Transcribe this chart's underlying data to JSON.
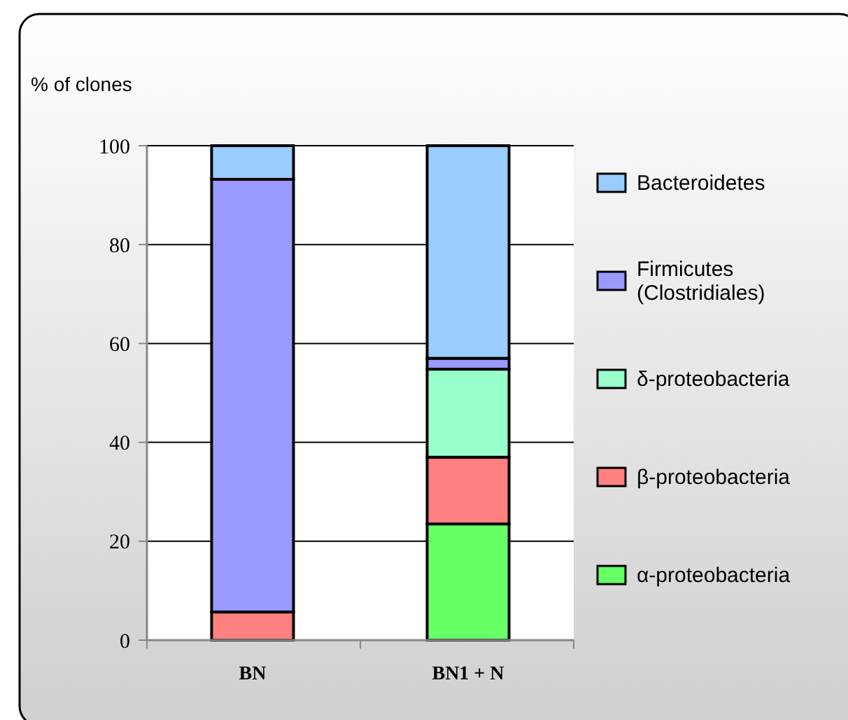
{
  "chart_data": {
    "type": "bar",
    "stacked": true,
    "ylabel": "% of clones",
    "categories": [
      "BN",
      "BN1 + N"
    ],
    "series": [
      {
        "name": "α-proteobacteria",
        "color": "#66ff66",
        "values": [
          0,
          23.5
        ]
      },
      {
        "name": "β-proteobacteria",
        "color": "#ff8080",
        "values": [
          5.7,
          13.5
        ]
      },
      {
        "name": "δ-proteobacteria",
        "color": "#99ffcc",
        "values": [
          0,
          17.8
        ]
      },
      {
        "name": "Firmicutes (Clostridiales)",
        "color": "#9999ff",
        "values": [
          87.5,
          2.2
        ]
      },
      {
        "name": "Bacteroidetes",
        "color": "#99ccff",
        "values": [
          6.8,
          43
        ]
      }
    ],
    "ylim": [
      0,
      100
    ],
    "yticks": [
      0,
      20,
      40,
      60,
      80,
      100
    ],
    "grid": "y",
    "legend": "right"
  }
}
